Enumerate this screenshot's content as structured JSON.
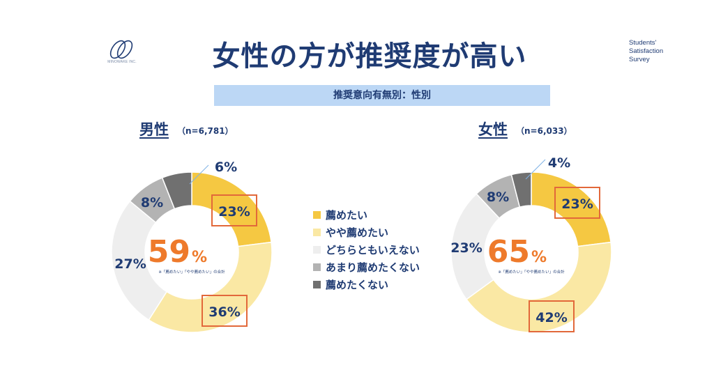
{
  "header": {
    "title": "女性の方が推奨度が高い",
    "subtitle": "推奨意向有無別：性別",
    "logo_text": "MINOWAKE INC.",
    "survey_lines": [
      "Students'",
      "Satisfaction",
      "Survey"
    ]
  },
  "colors": {
    "recommend": "#f5c842",
    "somewhat_recommend": "#fae8a4",
    "neutral": "#eeeeee",
    "not_really": "#b3b3b3",
    "not_recommend": "#707070",
    "highlight_box": "#e2683a",
    "big_number": "#ee7a2b",
    "text": "#1f3b73"
  },
  "legend": [
    {
      "label": "薦めたい",
      "color_key": "recommend"
    },
    {
      "label": "やや薦めたい",
      "color_key": "somewhat_recommend"
    },
    {
      "label": "どちらともいえない",
      "color_key": "neutral"
    },
    {
      "label": "あまり薦めたくない",
      "color_key": "not_really"
    },
    {
      "label": "薦めたくない",
      "color_key": "not_recommend"
    }
  ],
  "chart_data": [
    {
      "type": "pie",
      "title": "男性",
      "n_label": "（n=6,781）",
      "categories": [
        "薦めたい",
        "やや薦めたい",
        "どちらともいえない",
        "あまり薦めたくない",
        "薦めたくない"
      ],
      "values": [
        23,
        36,
        27,
        8,
        6
      ],
      "labels": [
        "23%",
        "36%",
        "27%",
        "8%",
        "6%"
      ],
      "highlighted": [
        true,
        true,
        false,
        false,
        false
      ],
      "center_value": "59",
      "center_unit": "%",
      "center_note": "※「薦めたい」「やや薦めたい」の合計"
    },
    {
      "type": "pie",
      "title": "女性",
      "n_label": "（n=6,033）",
      "categories": [
        "薦めたい",
        "やや薦めたい",
        "どちらともいえない",
        "あまり薦めたくない",
        "薦めたくない"
      ],
      "values": [
        23,
        42,
        23,
        8,
        4
      ],
      "labels": [
        "23%",
        "42%",
        "23%",
        "8%",
        "4%"
      ],
      "highlighted": [
        true,
        true,
        false,
        false,
        false
      ],
      "center_value": "65",
      "center_unit": "%",
      "center_note": "※「薦めたい」「やや薦めたい」の合計"
    }
  ]
}
